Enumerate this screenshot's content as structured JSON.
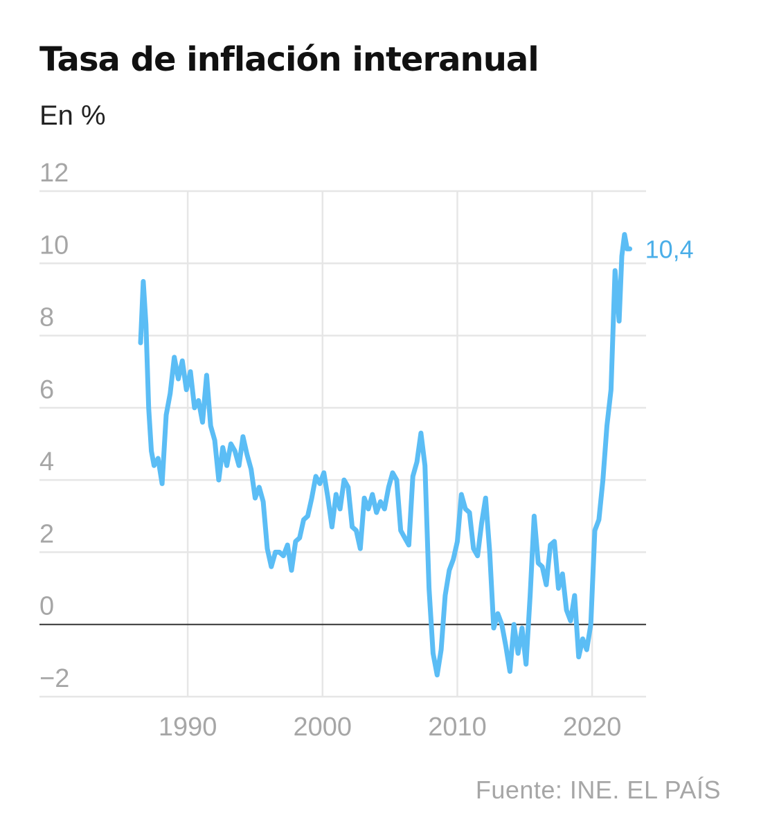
{
  "title": "Tasa de inflación interanual",
  "subtitle": "En %",
  "source": "Fuente: INE. EL PAÍS",
  "colors": {
    "line": "#5bbdf5",
    "label": "#4aaee8",
    "grid": "#e6e6e6",
    "zero": "#333333",
    "tick": "#a6a6a6"
  },
  "chart_data": {
    "type": "line",
    "title": "Tasa de inflación interanual",
    "subtitle": "En %",
    "xlabel": "",
    "ylabel": "",
    "xlim": [
      1979,
      2024
    ],
    "ylim": [
      -2,
      12
    ],
    "y_ticks": [
      12,
      10,
      8,
      6,
      4,
      2,
      0,
      -2
    ],
    "y_tick_labels": [
      "12",
      "10",
      "8",
      "6",
      "4",
      "2",
      "0",
      "−2"
    ],
    "x_ticks": [
      1990,
      2000,
      2010,
      2020
    ],
    "x_tick_labels": [
      "1990",
      "2000",
      "2010",
      "2020"
    ],
    "grid": true,
    "end_label": "10,4",
    "series": [
      {
        "x": [
          1986.5,
          1986.7,
          1986.9,
          1987.1,
          1987.3,
          1987.5,
          1987.8,
          1988.1,
          1988.4,
          1988.7,
          1989.0,
          1989.3,
          1989.6,
          1989.9,
          1990.2,
          1990.5,
          1990.8,
          1991.1,
          1991.4,
          1991.7,
          1992.0,
          1992.3,
          1992.6,
          1992.9,
          1993.2,
          1993.5,
          1993.8,
          1994.1,
          1994.4,
          1994.7,
          1995.0,
          1995.3,
          1995.6,
          1995.9,
          1996.2,
          1996.5,
          1996.8,
          1997.1,
          1997.4,
          1997.7,
          1998.0,
          1998.3,
          1998.6,
          1998.9,
          1999.2,
          1999.5,
          1999.8,
          2000.1,
          2000.4,
          2000.7,
          2001.0,
          2001.3,
          2001.6,
          2001.9,
          2002.2,
          2002.5,
          2002.8,
          2003.1,
          2003.4,
          2003.7,
          2004.0,
          2004.3,
          2004.6,
          2004.9,
          2005.2,
          2005.5,
          2005.8,
          2006.1,
          2006.4,
          2006.7,
          2007.0,
          2007.3,
          2007.6,
          2007.9,
          2008.2,
          2008.5,
          2008.8,
          2009.1,
          2009.4,
          2009.7,
          2010.0,
          2010.3,
          2010.6,
          2010.9,
          2011.2,
          2011.5,
          2011.8,
          2012.1,
          2012.4,
          2012.7,
          2013.0,
          2013.3,
          2013.6,
          2013.9,
          2014.2,
          2014.5,
          2014.8,
          2015.1,
          2015.4,
          2015.7,
          2016.0,
          2016.3,
          2016.6,
          2016.9,
          2017.2,
          2017.5,
          2017.8,
          2018.1,
          2018.4,
          2018.7,
          2019.0,
          2019.3,
          2019.6,
          2019.9,
          2020.2,
          2020.5,
          2020.8,
          2021.1,
          2021.4,
          2021.7,
          2022.0,
          2022.2,
          2022.4,
          2022.6,
          2022.8
        ],
        "values": [
          7.8,
          9.5,
          8.3,
          6.0,
          4.8,
          4.4,
          4.6,
          3.9,
          5.8,
          6.4,
          7.4,
          6.8,
          7.3,
          6.5,
          7.0,
          6.0,
          6.2,
          5.6,
          6.9,
          5.5,
          5.1,
          4.0,
          4.9,
          4.4,
          5.0,
          4.8,
          4.4,
          5.2,
          4.7,
          4.3,
          3.5,
          3.8,
          3.4,
          2.1,
          1.6,
          2.0,
          2.0,
          1.9,
          2.2,
          1.5,
          2.3,
          2.4,
          2.9,
          3.0,
          3.5,
          4.1,
          3.9,
          4.2,
          3.5,
          2.7,
          3.6,
          3.2,
          4.0,
          3.8,
          2.7,
          2.6,
          2.1,
          3.5,
          3.2,
          3.6,
          3.1,
          3.4,
          3.2,
          3.8,
          4.2,
          4.0,
          2.6,
          2.4,
          2.2,
          4.1,
          4.5,
          5.3,
          4.4,
          1.0,
          -0.8,
          -1.4,
          -0.7,
          0.8,
          1.5,
          1.8,
          2.3,
          3.6,
          3.2,
          3.1,
          2.1,
          1.9,
          2.8,
          3.5,
          2.0,
          -0.1,
          0.3,
          0.0,
          -0.6,
          -1.3,
          0.0,
          -0.8,
          -0.1,
          -1.1,
          0.8,
          3.0,
          1.7,
          1.6,
          1.1,
          2.2,
          2.3,
          1.0,
          1.4,
          0.4,
          0.1,
          0.8,
          -0.9,
          -0.4,
          -0.7,
          0.0,
          2.6,
          2.9,
          4.0,
          5.5,
          6.5,
          9.8,
          8.4,
          10.2,
          10.8,
          10.4,
          10.4
        ]
      }
    ]
  }
}
